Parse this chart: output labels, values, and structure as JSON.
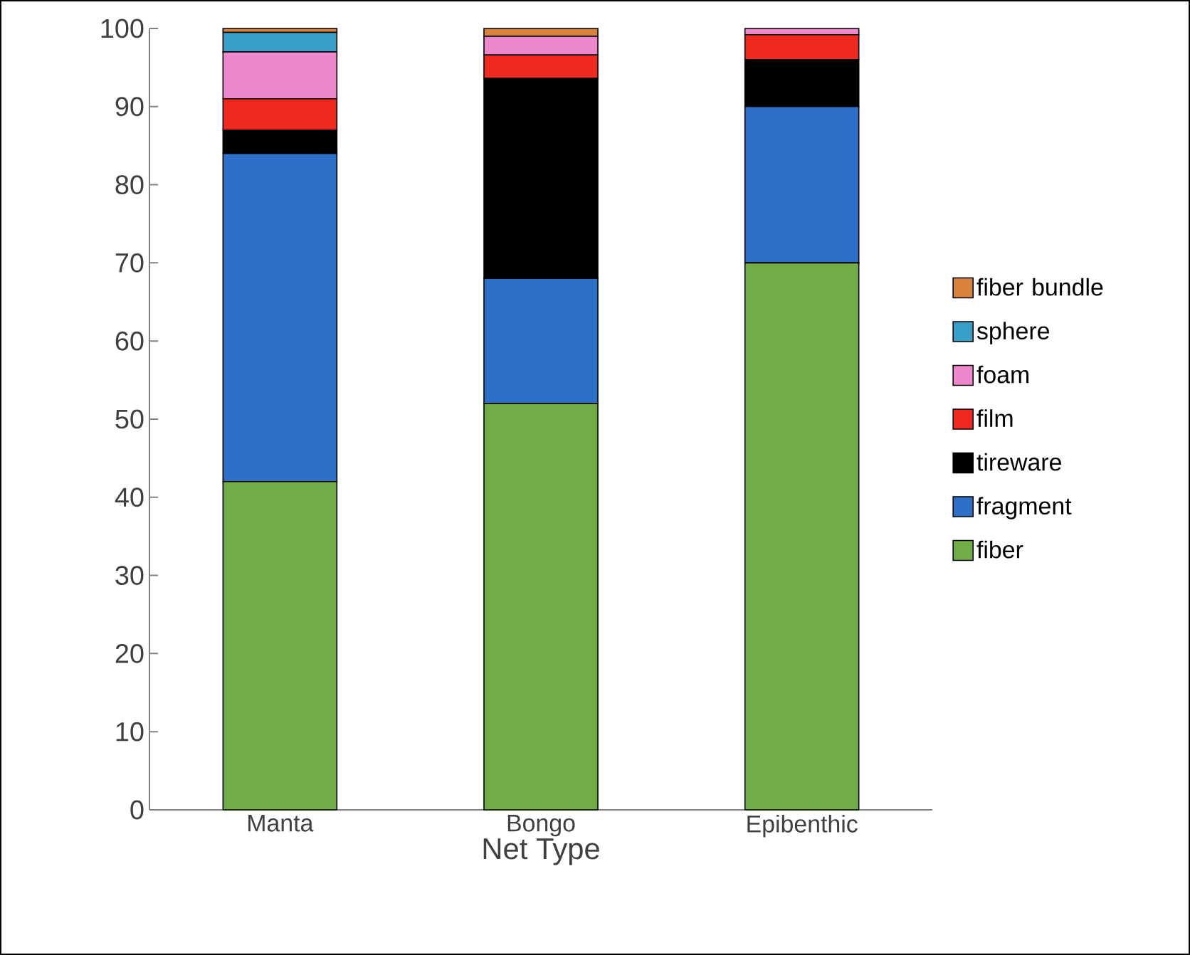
{
  "chart_data": {
    "type": "bar",
    "stacked": true,
    "xlabel": "Net Type",
    "categories": [
      "Manta",
      "Bongo",
      "Epibenthic"
    ],
    "series": [
      {
        "name": "fiber",
        "color": "#70ad47",
        "values": [
          42,
          52,
          70
        ]
      },
      {
        "name": "fragment",
        "color": "#2e6fc8",
        "values": [
          42,
          16,
          20
        ]
      },
      {
        "name": "tireware",
        "color": "#000000",
        "values": [
          3,
          25.6,
          6
        ]
      },
      {
        "name": "film",
        "color": "#ee2a20",
        "values": [
          4,
          3,
          3.2
        ]
      },
      {
        "name": "foam",
        "color": "#ee88cc",
        "values": [
          6,
          2.4,
          0.8
        ]
      },
      {
        "name": "sphere",
        "color": "#3a9fc6",
        "values": [
          2.5,
          0,
          0
        ]
      },
      {
        "name": "fiber bundle",
        "color": "#d9823b",
        "values": [
          0.5,
          1,
          0
        ]
      }
    ],
    "ylim": [
      0,
      100
    ],
    "yticks": [
      0,
      10,
      20,
      30,
      40,
      50,
      60,
      70,
      80,
      90,
      100
    ],
    "legend": "right"
  }
}
